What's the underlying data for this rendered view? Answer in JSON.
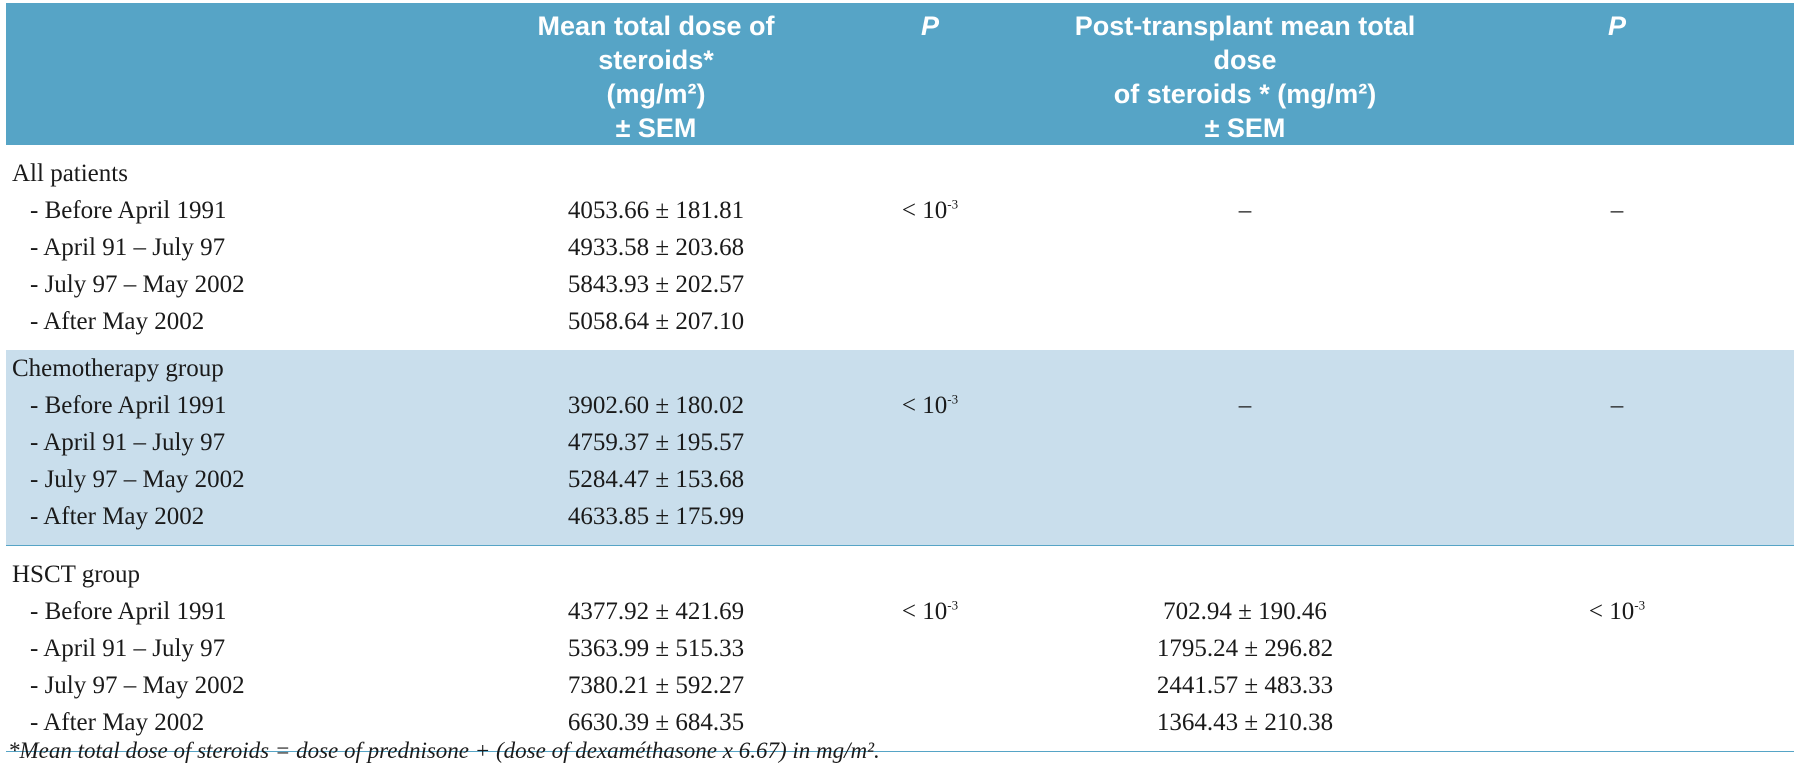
{
  "header": {
    "label": "",
    "mean_dose": [
      "Mean total dose of steroids*",
      "(mg/m²)",
      "± SEM"
    ],
    "p1": "P",
    "post_dose": [
      "Post-transplant mean total dose",
      "of steroids * (mg/m²)",
      "± SEM"
    ],
    "p2": "P"
  },
  "groups": [
    {
      "title": "All patients",
      "rows": [
        {
          "label": "- Before April 1991",
          "mean": "4053.66 ± 181.81"
        },
        {
          "label": "- April 91 – July 97",
          "mean": "4933.58 ± 203.68"
        },
        {
          "label": "- July 97 – May 2002",
          "mean": "5843.93 ± 202.57"
        },
        {
          "label": "- After May 2002",
          "mean": "5058.64 ± 207.10"
        }
      ],
      "p1": "< 10",
      "p1_exp": "-3",
      "post": [],
      "post_dash": "–",
      "p2": "–",
      "p2_exp": ""
    },
    {
      "title": "Chemotherapy group",
      "rows": [
        {
          "label": "- Before April 1991",
          "mean": "3902.60 ± 180.02"
        },
        {
          "label": "- April 91 – July 97",
          "mean": "4759.37 ± 195.57"
        },
        {
          "label": "- July 97 – May 2002",
          "mean": "5284.47 ± 153.68"
        },
        {
          "label": "- After May 2002",
          "mean": "4633.85 ± 175.99"
        }
      ],
      "p1": "< 10",
      "p1_exp": "-3",
      "post": [],
      "post_dash": "–",
      "p2": "–",
      "p2_exp": ""
    },
    {
      "title": "HSCT group",
      "rows": [
        {
          "label": "- Before April 1991",
          "mean": "4377.92 ± 421.69",
          "post": "702.94 ± 190.46"
        },
        {
          "label": "- April 91 – July 97",
          "mean": "5363.99 ± 515.33",
          "post": "1795.24 ± 296.82"
        },
        {
          "label": "- July 97 – May 2002",
          "mean": "7380.21 ± 592.27",
          "post": "2441.57 ± 483.33"
        },
        {
          "label": "- After May 2002",
          "mean": "6630.39 ± 684.35",
          "post": "1364.43 ± 210.38"
        }
      ],
      "p1": "< 10",
      "p1_exp": "-3",
      "p2": "< 10",
      "p2_exp": "-3"
    }
  ],
  "footnote": "*Mean total dose of steroids = dose of prednisone + (dose of dexaméthasone x 6.67) in mg/m².",
  "colors": {
    "header_bg": "#56a4c6",
    "band_bg": "#c9deec",
    "header_text": "#ffffff"
  }
}
